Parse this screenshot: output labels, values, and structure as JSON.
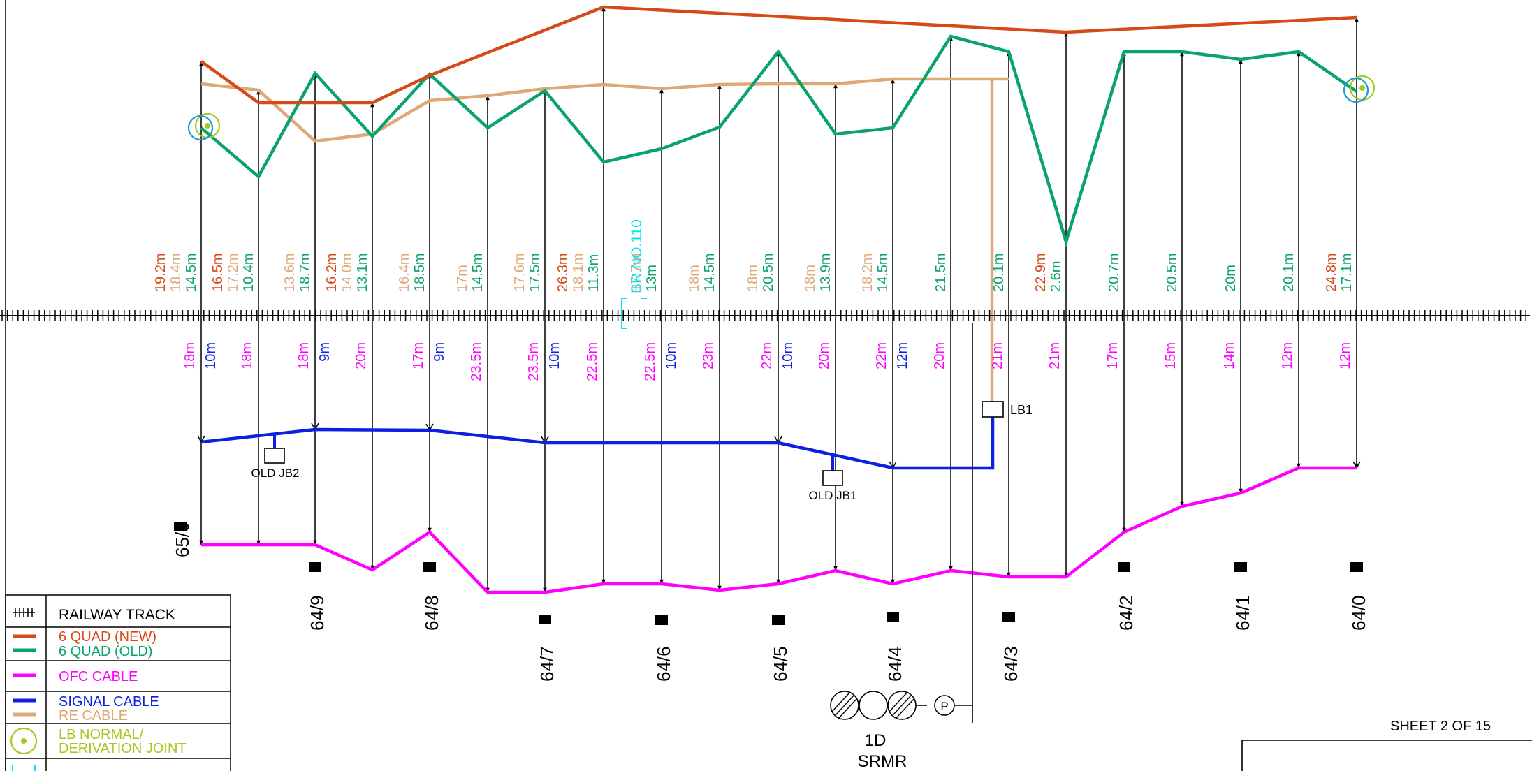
{
  "sheet_label": "SHEET 2 OF 15",
  "colors": {
    "quad_new": "#d64a17",
    "quad_old": "#0aa36b",
    "ofc": "#ff00ff",
    "signal": "#0d1fe0",
    "re": "#dfa877",
    "lb": "#a4c81d",
    "bridge": "#00e5f5",
    "track": "#000000"
  },
  "legend": [
    {
      "label": "RAILWAY TRACK",
      "type": "track"
    },
    {
      "label": "6 QUAD (NEW)",
      "label2": "6 QUAD (OLD)",
      "type": "pair"
    },
    {
      "label": "OFC CABLE",
      "type": "ofc"
    },
    {
      "label": "SIGNAL CABLE",
      "label2": "RE CABLE",
      "type": "pair2"
    },
    {
      "label": "LB NORMAL/",
      "label2": "DERIVATION JOINT",
      "type": "lb"
    }
  ],
  "bridge_label": "BR.NO.110",
  "km_posts": [
    {
      "label": "65/0"
    },
    {
      "label": "64/9"
    },
    {
      "label": "64/8"
    },
    {
      "label": "64/7"
    },
    {
      "label": "64/6"
    },
    {
      "label": "64/5"
    },
    {
      "label": "64/4"
    },
    {
      "label": "64/3"
    },
    {
      "label": "64/2"
    },
    {
      "label": "64/1"
    },
    {
      "label": "64/0"
    }
  ],
  "junction_labels": {
    "jb2": "OLD JB2",
    "jb1": "OLD JB1",
    "lb1": "LB1"
  },
  "equipment": {
    "number": "1D",
    "name": "SRMR",
    "p": "P"
  },
  "measurements": [
    {
      "up": [
        [
          "19.2m",
          "quad_new"
        ],
        [
          "18.4m",
          "re"
        ],
        [
          "14.5m",
          "quad_old"
        ]
      ],
      "down": [
        [
          "18m",
          "ofc"
        ],
        [
          "10m",
          "signal"
        ]
      ]
    },
    {
      "up": [
        [
          "16.5m",
          "quad_new"
        ],
        [
          "17.2m",
          "re"
        ],
        [
          "10.4m",
          "quad_old"
        ]
      ],
      "down": [
        [
          "18m",
          "ofc"
        ]
      ]
    },
    {
      "up": [
        [
          "13.6m",
          "re"
        ],
        [
          "18.7m",
          "quad_old"
        ]
      ],
      "down": [
        [
          "18m",
          "ofc"
        ],
        [
          "9m",
          "signal"
        ]
      ]
    },
    {
      "up": [
        [
          "16.2m",
          "quad_new"
        ],
        [
          "14.0m",
          "re"
        ],
        [
          "13.1m",
          "quad_old"
        ]
      ],
      "down": [
        [
          "20m",
          "ofc"
        ]
      ]
    },
    {
      "up": [
        [
          "16.4m",
          "re"
        ],
        [
          "18.5m",
          "quad_old"
        ]
      ],
      "down": [
        [
          "17m",
          "ofc"
        ],
        [
          "9m",
          "signal"
        ]
      ]
    },
    {
      "up": [
        [
          "17m",
          "re"
        ],
        [
          "14.5m",
          "quad_old"
        ]
      ],
      "down": [
        [
          "23.5m",
          "ofc"
        ]
      ]
    },
    {
      "up": [
        [
          "17.6m",
          "re"
        ],
        [
          "17.5m",
          "quad_old"
        ]
      ],
      "down": [
        [
          "23.5m",
          "ofc"
        ],
        [
          "10m",
          "signal"
        ]
      ]
    },
    {
      "up": [
        [
          "26.3m",
          "quad_new"
        ],
        [
          "18.1m",
          "re"
        ],
        [
          "11.3m",
          "quad_old"
        ]
      ],
      "down": [
        [
          "22.5m",
          "ofc"
        ]
      ]
    },
    {
      "up": [
        [
          "17.7m",
          "re"
        ],
        [
          "13m",
          "quad_old"
        ]
      ],
      "down": [
        [
          "22.5m",
          "ofc"
        ],
        [
          "10m",
          "signal"
        ]
      ]
    },
    {
      "up": [
        [
          "18m",
          "re"
        ],
        [
          "14.5m",
          "quad_old"
        ]
      ],
      "down": [
        [
          "23m",
          "ofc"
        ]
      ]
    },
    {
      "up": [
        [
          "18m",
          "re"
        ],
        [
          "20.5m",
          "quad_old"
        ]
      ],
      "down": [
        [
          "22m",
          "ofc"
        ],
        [
          "10m",
          "signal"
        ]
      ]
    },
    {
      "up": [
        [
          "18m",
          "re"
        ],
        [
          "13.9m",
          "quad_old"
        ]
      ],
      "down": [
        [
          "20m",
          "ofc"
        ]
      ]
    },
    {
      "up": [
        [
          "18.2m",
          "re"
        ],
        [
          "14.5m",
          "quad_old"
        ]
      ],
      "down": [
        [
          "22m",
          "ofc"
        ],
        [
          "12m",
          "signal"
        ]
      ]
    },
    {
      "up": [
        [
          "21.5m",
          "quad_old"
        ]
      ],
      "down": [
        [
          "20m",
          "ofc"
        ]
      ]
    },
    {
      "up": [
        [
          "20.1m",
          "quad_old"
        ]
      ],
      "down": [
        [
          "21m",
          "ofc"
        ]
      ]
    },
    {
      "up": [
        [
          "22.9m",
          "quad_new"
        ],
        [
          "2.6m",
          "quad_old"
        ]
      ],
      "down": [
        [
          "21m",
          "ofc"
        ]
      ]
    },
    {
      "up": [
        [
          "20.7m",
          "quad_old"
        ]
      ],
      "down": [
        [
          "17m",
          "ofc"
        ]
      ]
    },
    {
      "up": [
        [
          "20.5m",
          "quad_old"
        ]
      ],
      "down": [
        [
          "15m",
          "ofc"
        ]
      ]
    },
    {
      "up": [
        [
          "20m",
          "quad_old"
        ]
      ],
      "down": [
        [
          "14m",
          "ofc"
        ]
      ]
    },
    {
      "up": [
        [
          "20.1m",
          "quad_old"
        ]
      ],
      "down": [
        [
          "12m",
          "ofc"
        ]
      ]
    },
    {
      "up": [
        [
          "24.8m",
          "quad_new"
        ],
        [
          "17.1m",
          "quad_old"
        ]
      ],
      "down": [
        [
          "12m",
          "ofc"
        ]
      ]
    }
  ]
}
